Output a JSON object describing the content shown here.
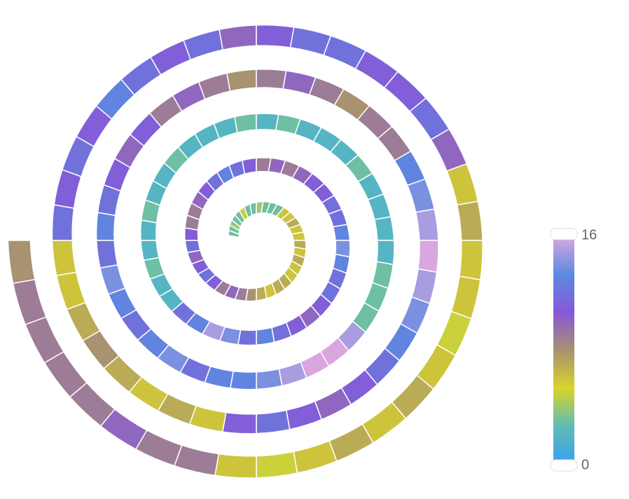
{
  "chart_data": {
    "type": "spiral-heatmap",
    "values": [
      3,
      3,
      4,
      3,
      3,
      5,
      3,
      3,
      4,
      3,
      3,
      3,
      6,
      6,
      7,
      6,
      6,
      7,
      6,
      7,
      6,
      6,
      7,
      7,
      6,
      7,
      8,
      9,
      10,
      9,
      11,
      12,
      11,
      10,
      12,
      11,
      9,
      9,
      10,
      11,
      12,
      13,
      12,
      11,
      9,
      10,
      9,
      10,
      11,
      11,
      12,
      12,
      13,
      14,
      13,
      12,
      12,
      11,
      10,
      11,
      12,
      13,
      12,
      14,
      15,
      13,
      12,
      2,
      2,
      3,
      2,
      2,
      3,
      2,
      2,
      3,
      2,
      2,
      2,
      3,
      2,
      3,
      2,
      2,
      2,
      3,
      2,
      2,
      2,
      2,
      3,
      3,
      3,
      15,
      16,
      16,
      15,
      14,
      13,
      13,
      12,
      14,
      13,
      12,
      13,
      14,
      12,
      13,
      12,
      11,
      10,
      11,
      9,
      10,
      9,
      8,
      9,
      10,
      9,
      8,
      9,
      9,
      13,
      14,
      15,
      16,
      15,
      14,
      13,
      12,
      11,
      10,
      11,
      12,
      11,
      6,
      7,
      6,
      7,
      8,
      7,
      6,
      6,
      12,
      11,
      12,
      11,
      13,
      12,
      11,
      12,
      10,
      11,
      12,
      12,
      11,
      11,
      12,
      10,
      6,
      7,
      6,
      6,
      5,
      6,
      7,
      6,
      7,
      6,
      5,
      6,
      9,
      9,
      10,
      9,
      9,
      9,
      9,
      8
    ],
    "visual_map": {
      "min": 0,
      "max": 16,
      "colors": [
        "#3aa0f0",
        "#5fbcb4",
        "#d9d42a",
        "#a89270",
        "#8858d8",
        "#5a8ae0",
        "#d9a6e0"
      ]
    }
  }
}
